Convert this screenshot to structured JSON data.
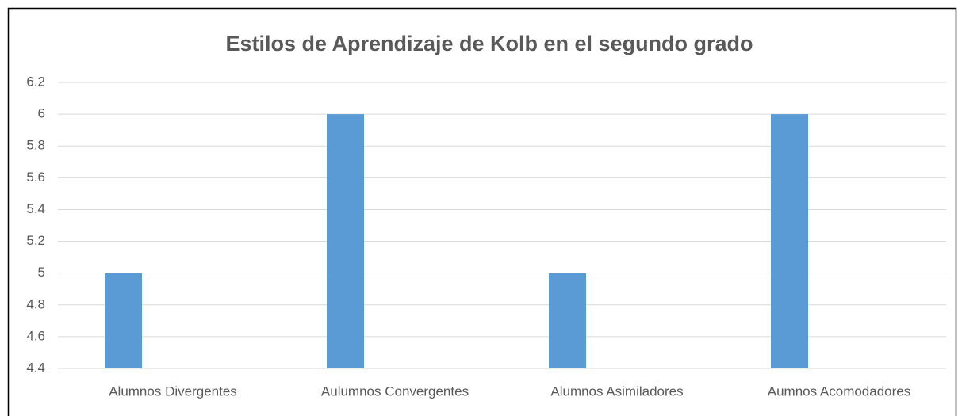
{
  "chart_data": {
    "type": "bar",
    "title": "Estilos de Aprendizaje de Kolb en el segundo grado",
    "categories": [
      "Alumnos Divergentes",
      "Aulumnos Convergentes",
      "Alumnos Asimiladores",
      "Aumnos Acomodadores"
    ],
    "values": [
      5,
      6,
      5,
      6
    ],
    "color": "#5b9bd5",
    "ylim": [
      4.4,
      6.2
    ],
    "yticks": [
      4.4,
      4.6,
      4.8,
      5,
      5.2,
      5.4,
      5.6,
      5.8,
      6,
      6.2
    ],
    "grid": true
  }
}
